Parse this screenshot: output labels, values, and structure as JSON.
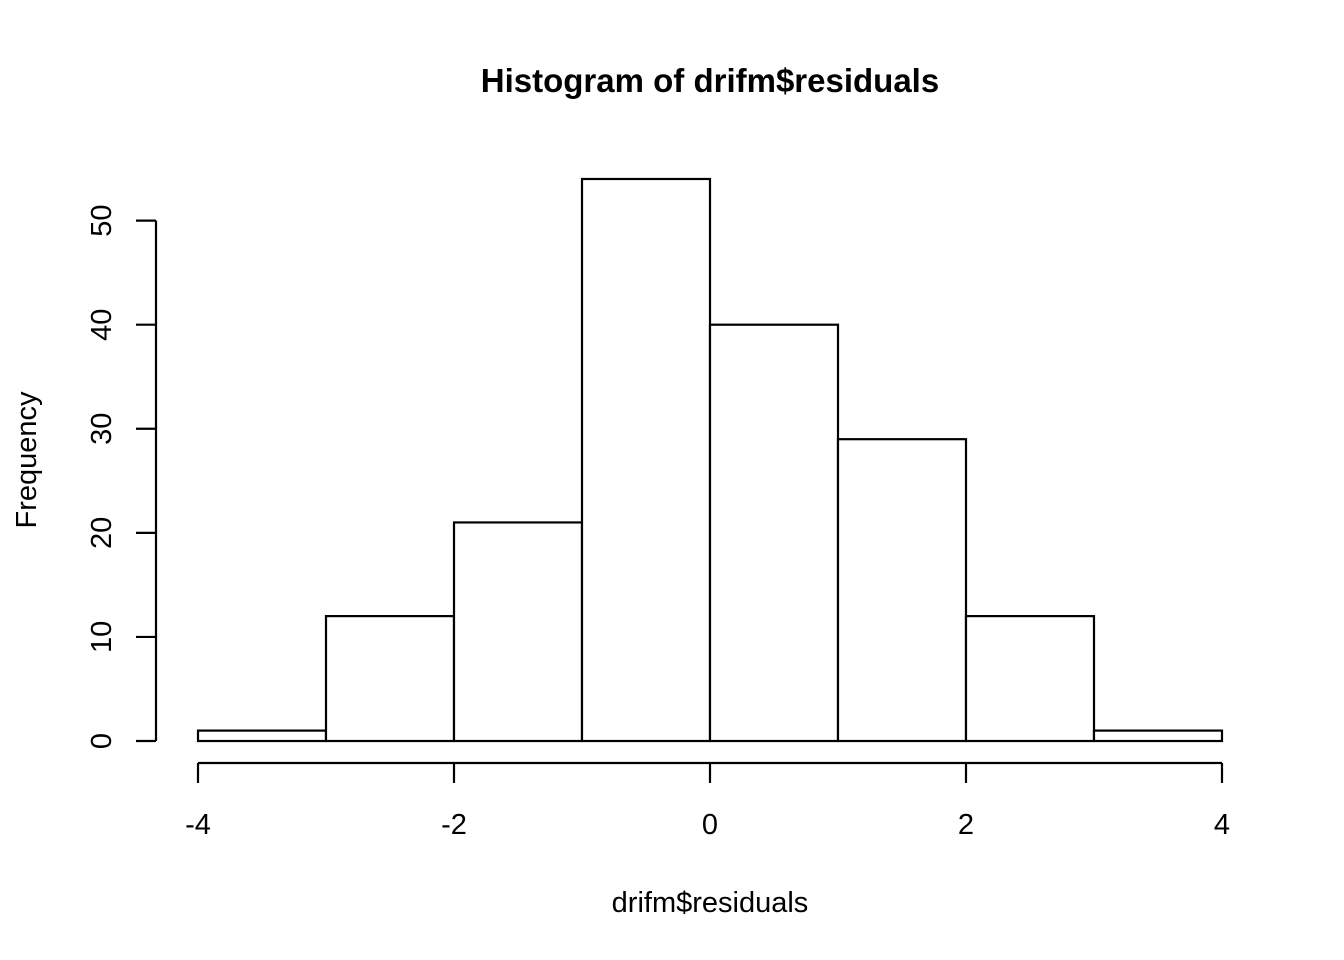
{
  "chart_data": {
    "type": "bar",
    "title": "Histogram of drifm$residuals",
    "xlabel": "drifm$residuals",
    "ylabel": "Frequency",
    "bin_edges": [
      -4,
      -3,
      -2,
      -1,
      0,
      1,
      2,
      3,
      4
    ],
    "values": [
      1,
      12,
      21,
      54,
      40,
      29,
      12,
      1
    ],
    "x_ticks": [
      -4,
      -2,
      0,
      2,
      4
    ],
    "x_tick_labels": [
      "-4",
      "-2",
      "0",
      "2",
      "4"
    ],
    "y_ticks": [
      0,
      10,
      20,
      30,
      40,
      50
    ],
    "y_tick_labels": [
      "0",
      "10",
      "20",
      "30",
      "40",
      "50"
    ],
    "xlim": [
      -4,
      4
    ],
    "ylim": [
      0,
      54
    ],
    "grid": false,
    "colors": {
      "bar_fill": "#ffffff",
      "bar_stroke": "#000000"
    }
  }
}
